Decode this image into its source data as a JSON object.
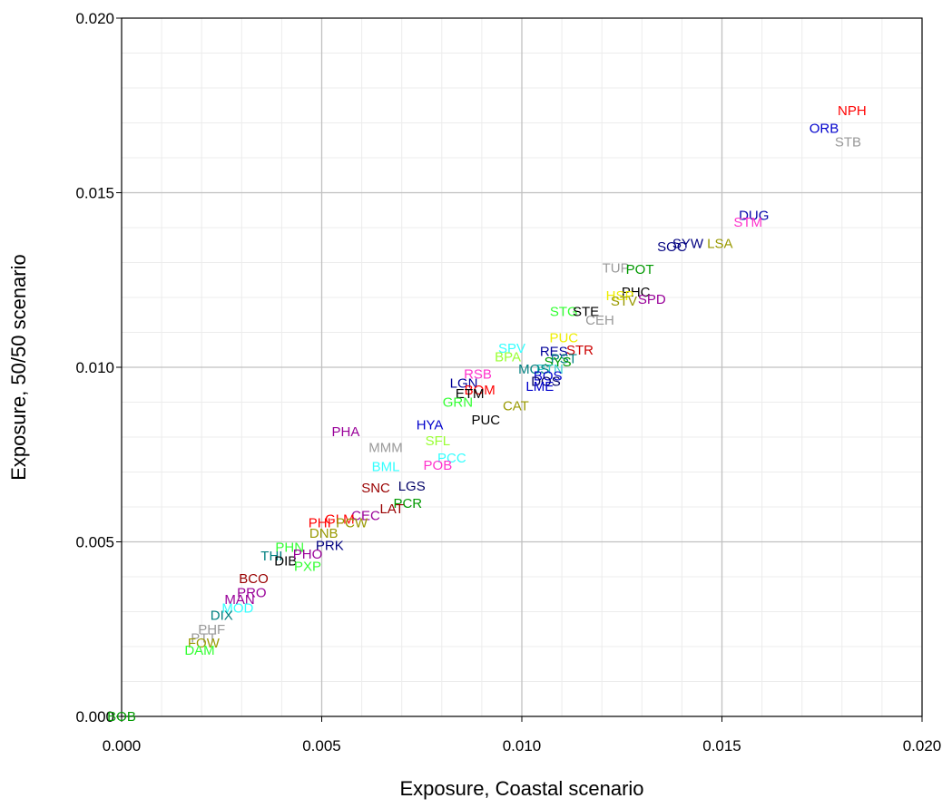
{
  "chart_data": {
    "type": "scatter",
    "title": "",
    "xlabel": "Exposure, Coastal scenario",
    "ylabel": "Exposure, 50/50 scenario",
    "xlim": [
      0,
      0.02
    ],
    "ylim": [
      0,
      0.02
    ],
    "x_ticks": [
      "0.000",
      "0.005",
      "0.010",
      "0.015",
      "0.020"
    ],
    "y_ticks": [
      "0.000",
      "0.005",
      "0.010",
      "0.015",
      "0.020"
    ],
    "grid": true,
    "points": [
      {
        "label": "NPH",
        "x": 0.01825,
        "y": 0.01735,
        "color": "#ff0000"
      },
      {
        "label": "ORB",
        "x": 0.01755,
        "y": 0.01685,
        "color": "#0000cc"
      },
      {
        "label": "STB",
        "x": 0.01815,
        "y": 0.01645,
        "color": "#999999"
      },
      {
        "label": "DUG",
        "x": 0.0158,
        "y": 0.01435,
        "color": "#0000aa"
      },
      {
        "label": "STM",
        "x": 0.01565,
        "y": 0.01415,
        "color": "#ff33cc"
      },
      {
        "label": "SYW",
        "x": 0.01415,
        "y": 0.01355,
        "color": "#000080"
      },
      {
        "label": "LSA",
        "x": 0.01495,
        "y": 0.01355,
        "color": "#999900"
      },
      {
        "label": "SOC",
        "x": 0.01375,
        "y": 0.01345,
        "color": "#000080"
      },
      {
        "label": "TUP",
        "x": 0.01235,
        "y": 0.01285,
        "color": "#999999"
      },
      {
        "label": "POT",
        "x": 0.01295,
        "y": 0.0128,
        "color": "#009900"
      },
      {
        "label": "PHC",
        "x": 0.01285,
        "y": 0.01215,
        "color": "#000000"
      },
      {
        "label": "SPD",
        "x": 0.01325,
        "y": 0.01195,
        "color": "#990099"
      },
      {
        "label": "HSP",
        "x": 0.01245,
        "y": 0.01205,
        "color": "#eeee00"
      },
      {
        "label": "STV",
        "x": 0.01255,
        "y": 0.0119,
        "color": "#999900"
      },
      {
        "label": "STG",
        "x": 0.01105,
        "y": 0.0116,
        "color": "#33ff33"
      },
      {
        "label": "STE",
        "x": 0.0116,
        "y": 0.0116,
        "color": "#000000"
      },
      {
        "label": "CEH",
        "x": 0.01195,
        "y": 0.01135,
        "color": "#999999"
      },
      {
        "label": "PUC",
        "x": 0.01105,
        "y": 0.01085,
        "color": "#eeee00"
      },
      {
        "label": "SPV",
        "x": 0.00975,
        "y": 0.01055,
        "color": "#33ffff"
      },
      {
        "label": "STR",
        "x": 0.01145,
        "y": 0.0105,
        "color": "#cc0000"
      },
      {
        "label": "RES",
        "x": 0.0108,
        "y": 0.01045,
        "color": "#000099"
      },
      {
        "label": "BPA",
        "x": 0.00965,
        "y": 0.0103,
        "color": "#99ff33"
      },
      {
        "label": "PST",
        "x": 0.01105,
        "y": 0.01025,
        "color": "#008080"
      },
      {
        "label": "SYS",
        "x": 0.0109,
        "y": 0.01015,
        "color": "#009900"
      },
      {
        "label": "PTN",
        "x": 0.0107,
        "y": 0.00995,
        "color": "#33cccc"
      },
      {
        "label": "MOS",
        "x": 0.0103,
        "y": 0.00995,
        "color": "#008080"
      },
      {
        "label": "BOS",
        "x": 0.01065,
        "y": 0.00975,
        "color": "#0000cc"
      },
      {
        "label": "DOS",
        "x": 0.0106,
        "y": 0.0096,
        "color": "#000066"
      },
      {
        "label": "LME",
        "x": 0.01045,
        "y": 0.00945,
        "color": "#0000cc"
      },
      {
        "label": "RSB",
        "x": 0.0089,
        "y": 0.0098,
        "color": "#ff33cc"
      },
      {
        "label": "LGN",
        "x": 0.00855,
        "y": 0.00955,
        "color": "#000099"
      },
      {
        "label": "BOM",
        "x": 0.00895,
        "y": 0.00935,
        "color": "#ff0000"
      },
      {
        "label": "ETM",
        "x": 0.0087,
        "y": 0.00925,
        "color": "#000000"
      },
      {
        "label": "CAT",
        "x": 0.00985,
        "y": 0.0089,
        "color": "#999900"
      },
      {
        "label": "GRN",
        "x": 0.0084,
        "y": 0.009,
        "color": "#33ff33"
      },
      {
        "label": "PUC",
        "x": 0.0091,
        "y": 0.0085,
        "color": "#000000"
      },
      {
        "label": "PHA",
        "x": 0.0056,
        "y": 0.00815,
        "color": "#990099"
      },
      {
        "label": "HYA",
        "x": 0.0077,
        "y": 0.00835,
        "color": "#0000cc"
      },
      {
        "label": "SFL",
        "x": 0.0079,
        "y": 0.0079,
        "color": "#99ff33"
      },
      {
        "label": "MMM",
        "x": 0.0066,
        "y": 0.0077,
        "color": "#999999"
      },
      {
        "label": "PCC",
        "x": 0.00825,
        "y": 0.0074,
        "color": "#33ffff"
      },
      {
        "label": "POB",
        "x": 0.0079,
        "y": 0.0072,
        "color": "#ff33cc"
      },
      {
        "label": "BML",
        "x": 0.0066,
        "y": 0.00715,
        "color": "#33ffff"
      },
      {
        "label": "LGS",
        "x": 0.00725,
        "y": 0.0066,
        "color": "#000066"
      },
      {
        "label": "SNC",
        "x": 0.00635,
        "y": 0.00655,
        "color": "#990000"
      },
      {
        "label": "PCR",
        "x": 0.00715,
        "y": 0.0061,
        "color": "#009900"
      },
      {
        "label": "LAT",
        "x": 0.00675,
        "y": 0.00595,
        "color": "#990000"
      },
      {
        "label": "CEC",
        "x": 0.0061,
        "y": 0.00575,
        "color": "#990099"
      },
      {
        "label": "GLM",
        "x": 0.00545,
        "y": 0.00565,
        "color": "#ff0000"
      },
      {
        "label": "PHI",
        "x": 0.00495,
        "y": 0.00555,
        "color": "#ff0000"
      },
      {
        "label": "PCW",
        "x": 0.00575,
        "y": 0.00555,
        "color": "#999900"
      },
      {
        "label": "DNB",
        "x": 0.00505,
        "y": 0.00525,
        "color": "#999900"
      },
      {
        "label": "PRK",
        "x": 0.0052,
        "y": 0.0049,
        "color": "#000080"
      },
      {
        "label": "PHN",
        "x": 0.0042,
        "y": 0.00485,
        "color": "#33ff33"
      },
      {
        "label": "THI",
        "x": 0.00375,
        "y": 0.0046,
        "color": "#008080"
      },
      {
        "label": "DIB",
        "x": 0.0041,
        "y": 0.00445,
        "color": "#000000"
      },
      {
        "label": "PHO",
        "x": 0.00465,
        "y": 0.00465,
        "color": "#990099"
      },
      {
        "label": "PXP",
        "x": 0.00465,
        "y": 0.0043,
        "color": "#33ff33"
      },
      {
        "label": "BCO",
        "x": 0.0033,
        "y": 0.00395,
        "color": "#990000"
      },
      {
        "label": "PRO",
        "x": 0.00325,
        "y": 0.00355,
        "color": "#990099"
      },
      {
        "label": "MAN",
        "x": 0.00295,
        "y": 0.00335,
        "color": "#990099"
      },
      {
        "label": "MOD",
        "x": 0.0029,
        "y": 0.0031,
        "color": "#33ffff"
      },
      {
        "label": "DIX",
        "x": 0.0025,
        "y": 0.0029,
        "color": "#008080"
      },
      {
        "label": "PHF",
        "x": 0.00225,
        "y": 0.0025,
        "color": "#999999"
      },
      {
        "label": "PTT",
        "x": 0.00205,
        "y": 0.00225,
        "color": "#999999"
      },
      {
        "label": "FOW",
        "x": 0.00205,
        "y": 0.0021,
        "color": "#999900"
      },
      {
        "label": "DAM",
        "x": 0.00195,
        "y": 0.0019,
        "color": "#33ff33"
      },
      {
        "label": "BOB",
        "x": 0.0,
        "y": 0.0,
        "color": "#009900"
      }
    ]
  }
}
